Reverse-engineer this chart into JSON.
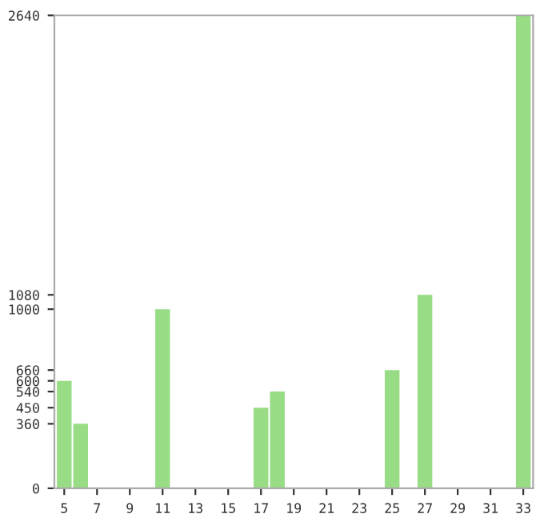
{
  "chart_data": {
    "type": "bar",
    "categories": [
      "5",
      null,
      "7",
      null,
      "9",
      null,
      "11",
      null,
      "13",
      null,
      "15",
      null,
      "17",
      null,
      "19",
      null,
      "21",
      null,
      "23",
      null,
      "25",
      null,
      "27",
      null,
      "29",
      null,
      "31",
      null,
      "33"
    ],
    "values": [
      600,
      360,
      0,
      0,
      0,
      0,
      1000,
      0,
      0,
      0,
      0,
      0,
      450,
      540,
      0,
      0,
      0,
      0,
      0,
      0,
      660,
      0,
      1080,
      0,
      0,
      0,
      0,
      0,
      2640
    ],
    "color": "#99dc86",
    "ylim": [
      0,
      2640
    ],
    "yticks": [
      0,
      360,
      450,
      540,
      600,
      660,
      1000,
      1080,
      2640
    ],
    "grid": false
  }
}
